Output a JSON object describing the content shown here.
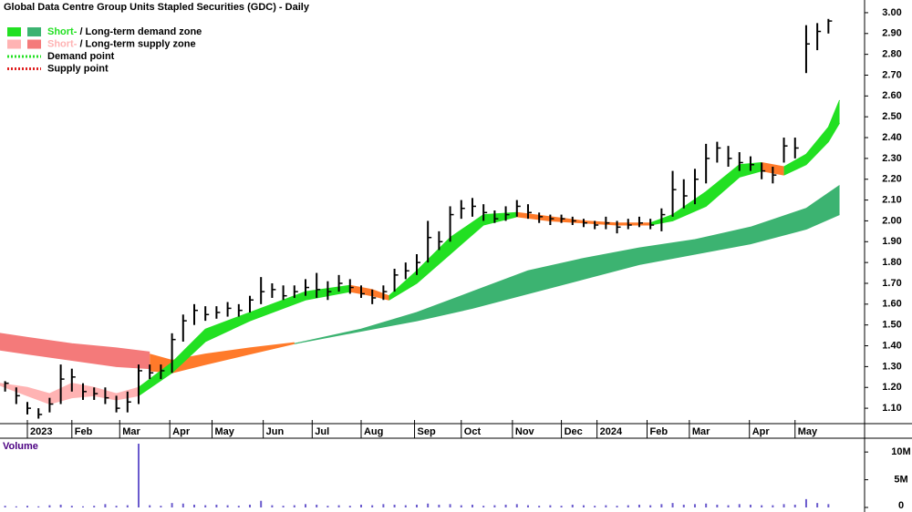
{
  "chart_data": [
    {
      "type": "ohlc",
      "title": "Global Data Centre Group Units Stapled Securities (GDC) - Daily",
      "legend": [
        {
          "swatches": [
            "#22e022",
            "#3cb371"
          ],
          "parts": [
            {
              "text": "Short-",
              "color": "#22e022"
            },
            {
              "text": " / Long-term demand zone"
            }
          ]
        },
        {
          "swatches": [
            "#ffb3b3",
            "#f47a7a"
          ],
          "parts": [
            {
              "text": "Short-",
              "color": "#ffb3b3"
            },
            {
              "text": " / Long-term supply zone"
            }
          ]
        },
        {
          "line": "#22e022",
          "parts": [
            {
              "text": "Demand point"
            }
          ]
        },
        {
          "line": "#e02020",
          "parts": [
            {
              "text": "Supply point"
            }
          ]
        }
      ],
      "x": [
        -2,
        -1,
        0,
        1,
        2,
        3,
        4,
        5,
        6,
        7,
        8,
        9,
        10,
        11,
        12,
        13,
        14,
        15,
        16,
        17,
        18,
        19,
        20,
        21,
        22,
        23,
        24,
        25,
        26,
        27,
        28,
        29,
        30,
        31,
        32,
        33,
        34,
        35,
        36,
        37,
        38,
        39,
        40,
        41,
        42,
        43,
        44,
        45,
        46,
        47,
        48,
        49,
        50,
        51,
        52,
        53,
        54,
        55,
        56,
        57,
        58,
        59,
        60,
        61,
        62,
        63,
        64,
        65,
        66,
        67,
        68,
        69,
        70,
        71,
        72
      ],
      "high": [
        1.23,
        1.2,
        1.13,
        1.1,
        1.15,
        1.31,
        1.29,
        1.22,
        1.2,
        1.2,
        1.16,
        1.18,
        1.31,
        1.31,
        1.31,
        1.46,
        1.55,
        1.6,
        1.59,
        1.59,
        1.61,
        1.6,
        1.64,
        1.73,
        1.7,
        1.69,
        1.69,
        1.72,
        1.75,
        1.71,
        1.74,
        1.72,
        1.69,
        1.67,
        1.69,
        1.77,
        1.8,
        1.84,
        2.0,
        1.95,
        2.07,
        2.1,
        2.11,
        2.08,
        2.05,
        2.07,
        2.1,
        2.08,
        2.04,
        2.03,
        2.03,
        2.02,
        2.01,
        2.0,
        2.02,
        2.0,
        2.01,
        2.02,
        2.01,
        2.06,
        2.24,
        2.2,
        2.25,
        2.37,
        2.38,
        2.36,
        2.33,
        2.31,
        2.28,
        2.26,
        2.4,
        2.4,
        2.94,
        2.95,
        2.97
      ],
      "low": [
        1.18,
        1.12,
        1.07,
        1.05,
        1.08,
        1.12,
        1.18,
        1.14,
        1.14,
        1.12,
        1.08,
        1.08,
        1.12,
        1.24,
        1.24,
        1.27,
        1.42,
        1.5,
        1.52,
        1.53,
        1.54,
        1.54,
        1.56,
        1.6,
        1.63,
        1.62,
        1.63,
        1.64,
        1.63,
        1.62,
        1.66,
        1.65,
        1.63,
        1.6,
        1.62,
        1.66,
        1.72,
        1.74,
        1.8,
        1.86,
        1.9,
        2.01,
        2.02,
        2.0,
        1.99,
        2.0,
        2.02,
        2.01,
        1.99,
        1.98,
        1.99,
        1.98,
        1.97,
        1.96,
        1.96,
        1.94,
        1.96,
        1.97,
        1.96,
        1.95,
        2.02,
        2.06,
        2.08,
        2.18,
        2.28,
        2.26,
        2.24,
        2.24,
        2.2,
        2.18,
        2.28,
        2.3,
        2.71,
        2.82,
        2.9
      ],
      "close": [
        1.22,
        1.16,
        1.1,
        1.07,
        1.12,
        1.24,
        1.25,
        1.18,
        1.17,
        1.15,
        1.1,
        1.13,
        1.28,
        1.27,
        1.28,
        1.43,
        1.52,
        1.57,
        1.55,
        1.56,
        1.58,
        1.57,
        1.62,
        1.66,
        1.67,
        1.64,
        1.66,
        1.68,
        1.67,
        1.66,
        1.7,
        1.68,
        1.65,
        1.63,
        1.66,
        1.74,
        1.76,
        1.8,
        1.92,
        1.9,
        2.03,
        2.06,
        2.07,
        2.04,
        2.01,
        2.03,
        2.07,
        2.04,
        2.02,
        2.01,
        2.01,
        2.0,
        1.99,
        1.98,
        1.99,
        1.97,
        1.98,
        1.99,
        1.98,
        2.03,
        2.15,
        2.12,
        2.2,
        2.3,
        2.35,
        2.3,
        2.28,
        2.27,
        2.24,
        2.22,
        2.36,
        2.35,
        2.85,
        2.91,
        2.96
      ],
      "zones": [
        {
          "color": "#f47a7a",
          "x": [
            -2.5,
            0,
            4,
            8,
            11
          ],
          "upper": [
            1.46,
            1.44,
            1.41,
            1.39,
            1.37
          ],
          "lower": [
            1.38,
            1.36,
            1.33,
            1.3,
            1.29
          ]
        },
        {
          "color": "#ff7a2a",
          "x": [
            11,
            13,
            16,
            20,
            24
          ],
          "upper": [
            1.36,
            1.33,
            1.36,
            1.39,
            1.415
          ],
          "lower": [
            1.28,
            1.27,
            1.31,
            1.36,
            1.41
          ]
        },
        {
          "color": "#3cb371",
          "x": [
            24,
            30,
            35,
            40,
            45,
            50,
            55,
            60,
            65,
            70,
            73
          ],
          "upper": [
            1.41,
            1.48,
            1.56,
            1.66,
            1.76,
            1.82,
            1.87,
            1.91,
            1.97,
            2.06,
            2.17
          ],
          "lower": [
            1.41,
            1.47,
            1.52,
            1.58,
            1.65,
            1.72,
            1.79,
            1.84,
            1.89,
            1.96,
            2.03
          ]
        },
        {
          "color": "#ffb3b3",
          "x": [
            -2.5,
            0,
            2,
            4,
            6,
            8,
            10
          ],
          "upper": [
            1.22,
            1.2,
            1.17,
            1.22,
            1.2,
            1.17,
            1.2
          ],
          "lower": [
            1.21,
            1.16,
            1.12,
            1.15,
            1.16,
            1.14,
            1.16
          ]
        },
        {
          "color": "#22e022",
          "x": [
            10,
            13,
            16,
            20,
            25,
            29
          ],
          "upper": [
            1.2,
            1.32,
            1.48,
            1.56,
            1.66,
            1.69
          ],
          "lower": [
            1.16,
            1.27,
            1.42,
            1.52,
            1.62,
            1.66
          ]
        },
        {
          "color": "#ff7a2a",
          "x": [
            29,
            31,
            32.5
          ],
          "upper": [
            1.69,
            1.67,
            1.64
          ],
          "lower": [
            1.66,
            1.64,
            1.62
          ]
        },
        {
          "color": "#22e022",
          "x": [
            32.5,
            35,
            38,
            41,
            44
          ],
          "upper": [
            1.64,
            1.76,
            1.92,
            2.03,
            2.04
          ],
          "lower": [
            1.62,
            1.7,
            1.84,
            1.98,
            2.02
          ]
        },
        {
          "color": "#ff7a2a",
          "x": [
            44,
            47,
            50,
            53,
            56
          ],
          "upper": [
            2.04,
            2.02,
            2.0,
            1.99,
            1.99
          ],
          "lower": [
            2.02,
            2.0,
            1.99,
            1.98,
            1.98
          ]
        },
        {
          "color": "#22e022",
          "x": [
            56,
            58,
            61,
            64,
            66
          ],
          "upper": [
            1.99,
            2.03,
            2.14,
            2.27,
            2.28
          ],
          "lower": [
            1.98,
            2.0,
            2.07,
            2.21,
            2.24
          ]
        },
        {
          "color": "#ff7a2a",
          "x": [
            66,
            68
          ],
          "upper": [
            2.28,
            2.26
          ],
          "lower": [
            2.24,
            2.22
          ]
        },
        {
          "color": "#22e022",
          "x": [
            68,
            70,
            72,
            73
          ],
          "upper": [
            2.26,
            2.32,
            2.45,
            2.58
          ],
          "lower": [
            2.22,
            2.27,
            2.38,
            2.47
          ]
        }
      ],
      "xlim": [
        -2.46,
        75.25
      ],
      "xticks": [
        {
          "value": 0,
          "label": "2023"
        },
        {
          "value": 4,
          "label": "Feb"
        },
        {
          "value": 8.3,
          "label": "Mar"
        },
        {
          "value": 12.8,
          "label": "Apr"
        },
        {
          "value": 16.6,
          "label": "May"
        },
        {
          "value": 21.2,
          "label": "Jun"
        },
        {
          "value": 25.6,
          "label": "Jul"
        },
        {
          "value": 30,
          "label": "Aug"
        },
        {
          "value": 34.8,
          "label": "Sep"
        },
        {
          "value": 39,
          "label": "Oct"
        },
        {
          "value": 43.6,
          "label": "Nov"
        },
        {
          "value": 48,
          "label": "Dec"
        },
        {
          "value": 51.2,
          "label": "2024"
        },
        {
          "value": 55.7,
          "label": "Feb"
        },
        {
          "value": 59.5,
          "label": "Mar"
        },
        {
          "value": 64.9,
          "label": "Apr"
        },
        {
          "value": 69,
          "label": "May"
        }
      ],
      "ylim": [
        1.026,
        3.061
      ],
      "yticks": [
        {
          "value": 1.1,
          "label": "1.10"
        },
        {
          "value": 1.2,
          "label": "1.20"
        },
        {
          "value": 1.3,
          "label": "1.30"
        },
        {
          "value": 1.4,
          "label": "1.40"
        },
        {
          "value": 1.5,
          "label": "1.50"
        },
        {
          "value": 1.6,
          "label": "1.60"
        },
        {
          "value": 1.7,
          "label": "1.70"
        },
        {
          "value": 1.8,
          "label": "1.80"
        },
        {
          "value": 1.9,
          "label": "1.90"
        },
        {
          "value": 2.0,
          "label": "2.00"
        },
        {
          "value": 2.1,
          "label": "2.10"
        },
        {
          "value": 2.2,
          "label": "2.20"
        },
        {
          "value": 2.3,
          "label": "2.30"
        },
        {
          "value": 2.4,
          "label": "2.40"
        },
        {
          "value": 2.5,
          "label": "2.50"
        },
        {
          "value": 2.6,
          "label": "2.60"
        },
        {
          "value": 2.7,
          "label": "2.70"
        },
        {
          "value": 2.8,
          "label": "2.80"
        },
        {
          "value": 2.9,
          "label": "2.90"
        },
        {
          "value": 3.0,
          "label": "3.00"
        }
      ]
    },
    {
      "type": "bar",
      "title": "Volume",
      "color": "#6a5acd",
      "x": [
        -2,
        -1,
        0,
        1,
        2,
        3,
        4,
        5,
        6,
        7,
        8,
        9,
        10,
        11,
        12,
        13,
        14,
        15,
        16,
        17,
        18,
        19,
        20,
        21,
        22,
        23,
        24,
        25,
        26,
        27,
        28,
        29,
        30,
        31,
        32,
        33,
        34,
        35,
        36,
        37,
        38,
        39,
        40,
        41,
        42,
        43,
        44,
        45,
        46,
        47,
        48,
        49,
        50,
        51,
        52,
        53,
        54,
        55,
        56,
        57,
        58,
        59,
        60,
        61,
        62,
        63,
        64,
        65,
        66,
        67,
        68,
        69,
        70,
        71,
        72
      ],
      "values": [
        0.3,
        0.2,
        0.3,
        0.2,
        0.4,
        0.5,
        0.3,
        0.2,
        0.3,
        0.6,
        0.3,
        0.4,
        11.5,
        0.4,
        0.3,
        0.8,
        0.7,
        0.5,
        0.4,
        0.5,
        0.4,
        0.3,
        0.5,
        1.2,
        0.4,
        0.3,
        0.4,
        0.6,
        0.5,
        0.3,
        0.4,
        0.3,
        0.5,
        0.4,
        0.6,
        0.5,
        0.4,
        0.5,
        0.7,
        0.5,
        0.6,
        0.4,
        0.5,
        0.3,
        0.4,
        0.5,
        0.6,
        0.4,
        0.3,
        0.4,
        0.3,
        0.5,
        0.4,
        0.3,
        0.4,
        0.3,
        0.4,
        0.5,
        0.4,
        0.6,
        0.8,
        0.5,
        0.6,
        0.7,
        0.5,
        0.4,
        0.6,
        0.5,
        0.4,
        0.4,
        0.6,
        0.5,
        1.5,
        0.8,
        0.6
      ],
      "ylim": [
        0,
        12
      ],
      "yticks": [
        0,
        {
          "value": 5,
          "label": "5M"
        },
        {
          "value": 10,
          "label": "10M"
        }
      ]
    }
  ]
}
